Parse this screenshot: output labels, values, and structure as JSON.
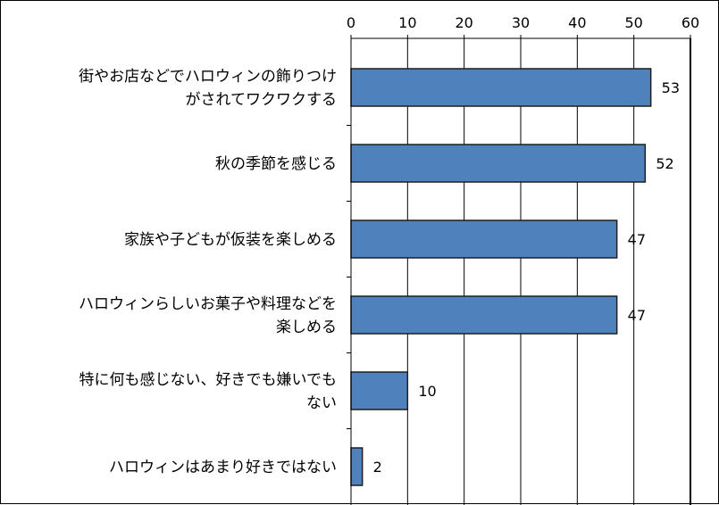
{
  "chart_data": {
    "type": "bar",
    "orientation": "horizontal",
    "title": "",
    "xlabel": "",
    "ylabel": "",
    "xlim": [
      0,
      60
    ],
    "ticks": [
      0,
      10,
      20,
      30,
      40,
      50,
      60
    ],
    "axis_position": "top",
    "grid": true,
    "legend": "none",
    "categories": [
      [
        "街やお店などでハロウィンの飾りつけ",
        "がされてワクワクする"
      ],
      [
        "秋の季節を感じる"
      ],
      [
        "家族や子どもが仮装を楽しめる"
      ],
      [
        "ハロウィンらしいお菓子や料理などを",
        "楽しめる"
      ],
      [
        "特に何も感じない、好きでも嫌いでも",
        "ない"
      ],
      [
        "ハロウィンはあまり好きではない"
      ]
    ],
    "values": [
      53,
      52,
      47,
      47,
      10,
      2
    ],
    "colors": {
      "bar_fill": "#4F81BD",
      "bar_stroke": "#1F1F1F",
      "grid": "#000000"
    }
  }
}
